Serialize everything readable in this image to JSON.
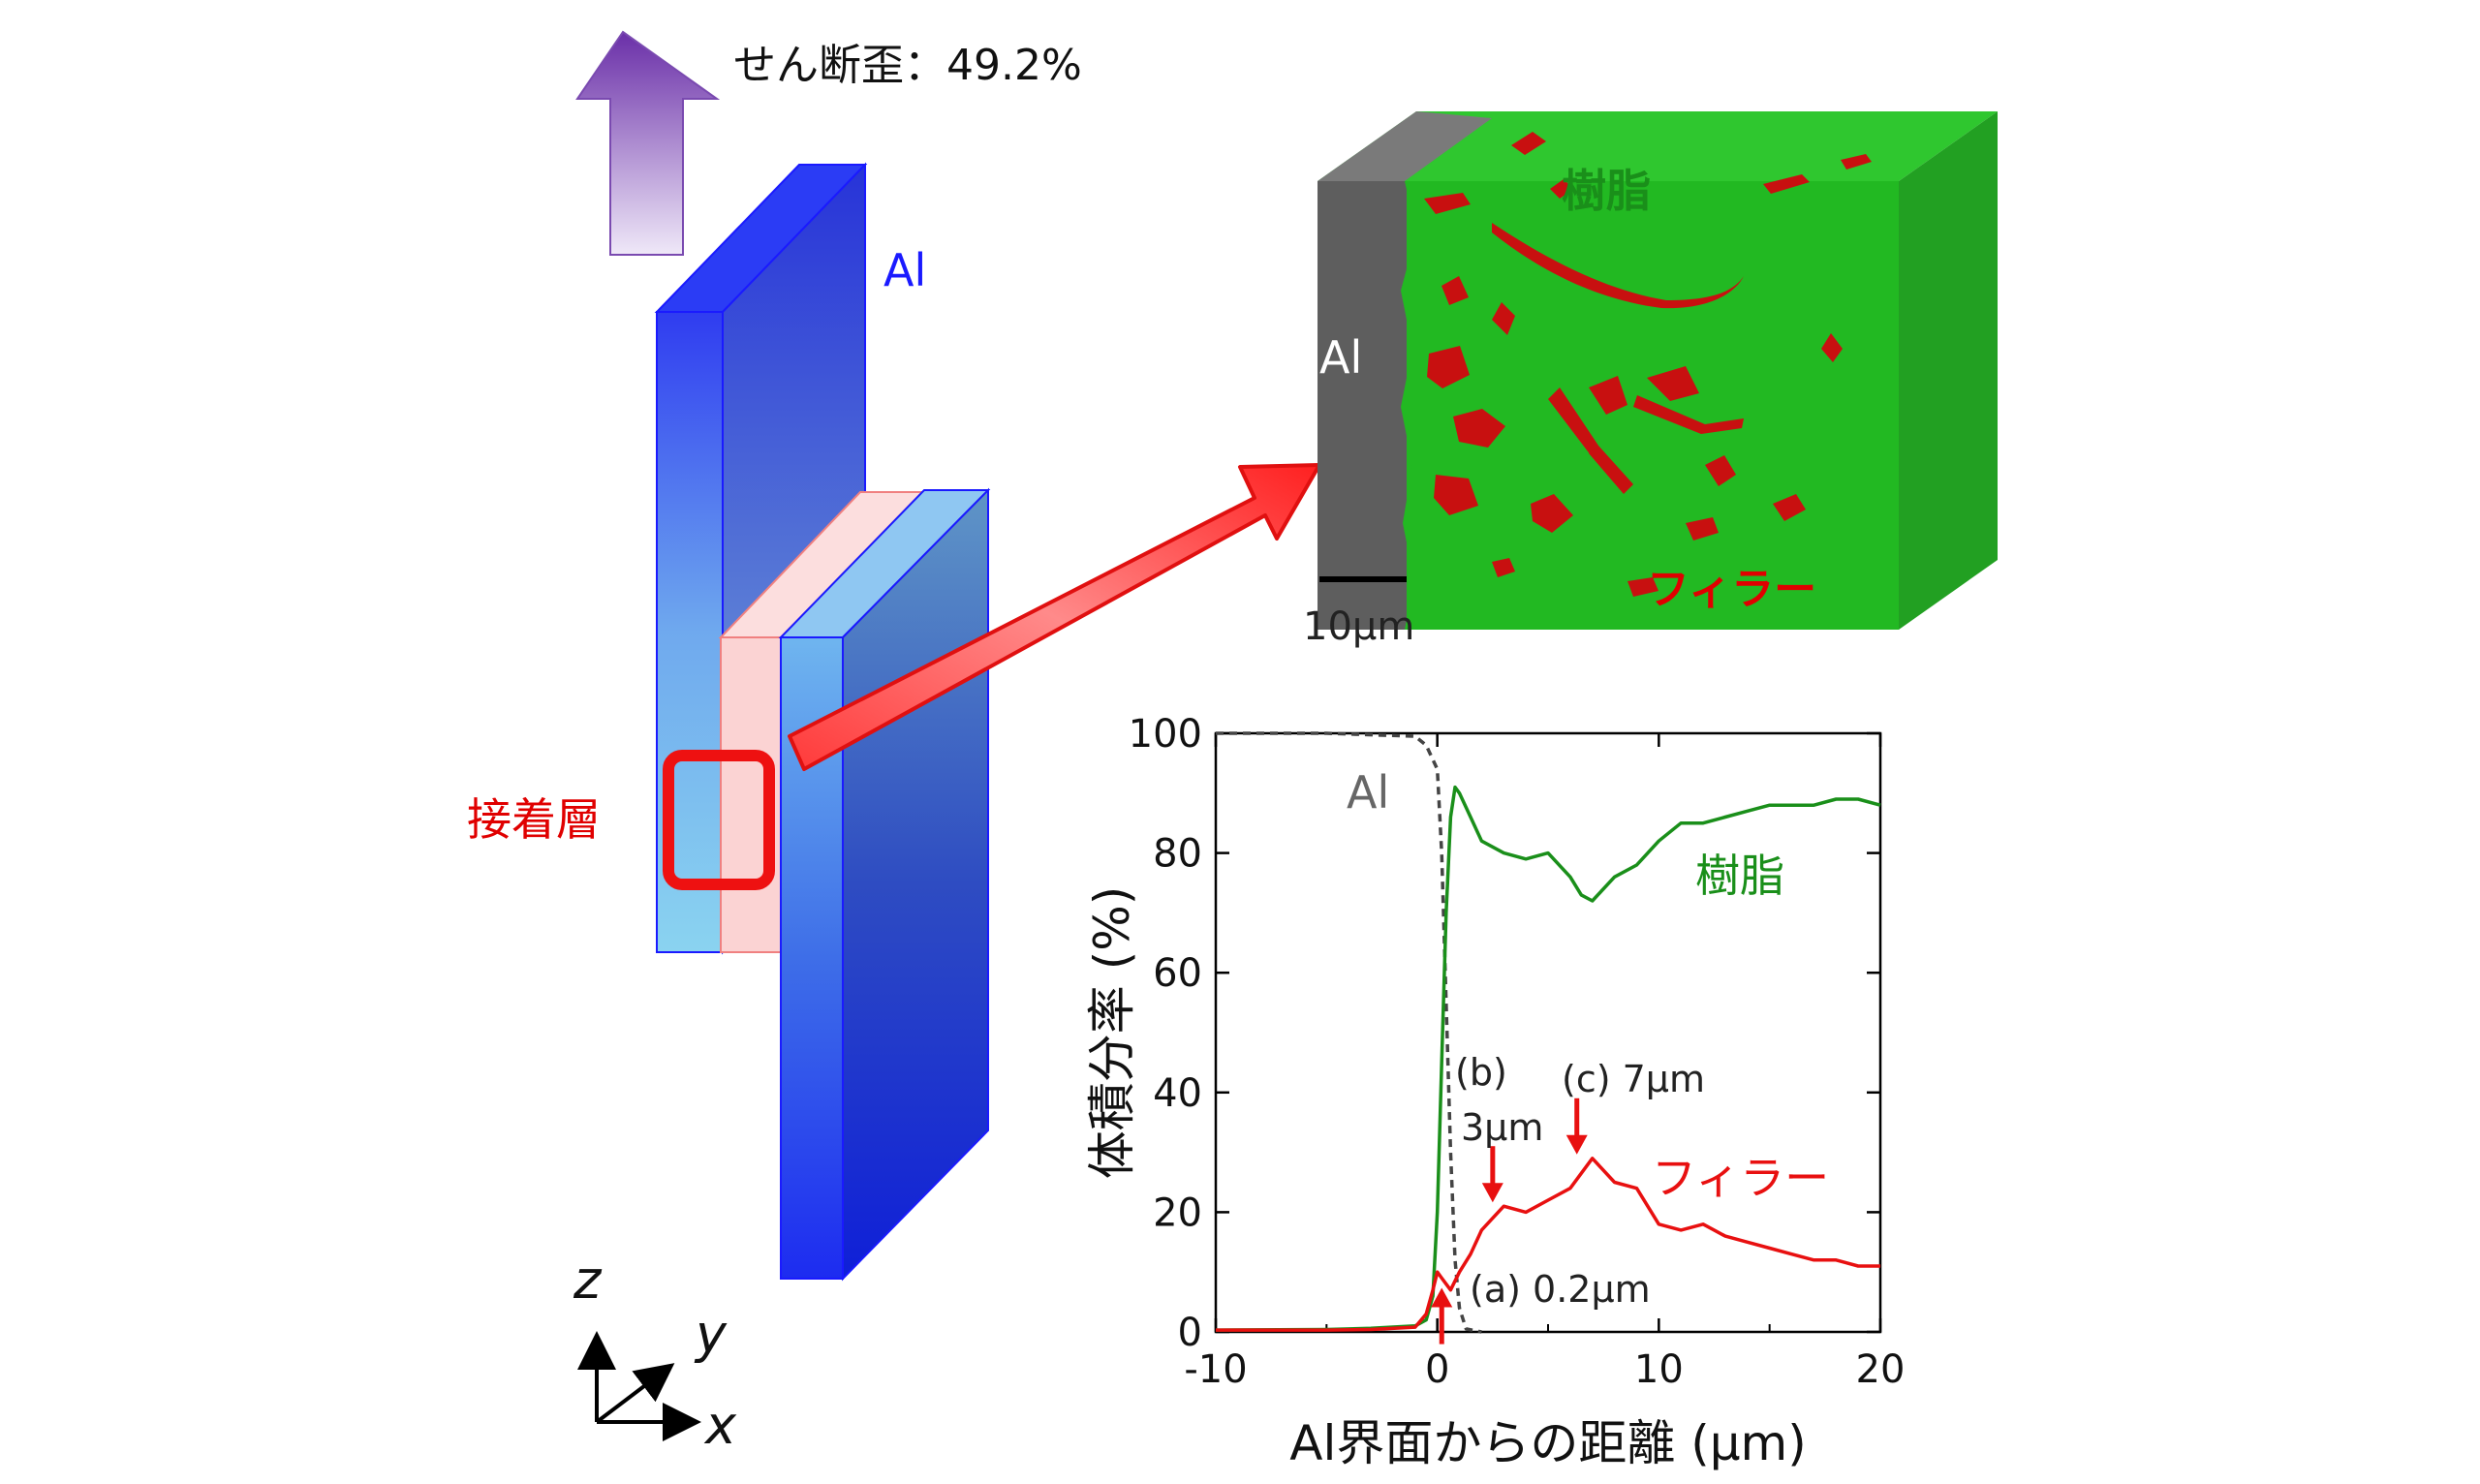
{
  "strain_label": "せん断歪：49.2%",
  "plate_label": "Al",
  "adhesive_label": "接着層",
  "axes_labels": {
    "z": "z",
    "y": "y",
    "x": "x"
  },
  "ct_image": {
    "resin_label": "樹脂",
    "al_label": "Al",
    "filler_label": "フィラー",
    "scale_bar_label": "10μm"
  },
  "colors": {
    "al_blue": "#1a1aff",
    "resin_green": "#1aa51a",
    "filler_red": "#e00000",
    "arrow_purple": "#7a4ab0"
  },
  "chart_data": {
    "type": "line",
    "xlabel": "Al界面からの距離 (μm)",
    "ylabel": "体積分率 (%)",
    "xlim": [
      -10,
      20
    ],
    "ylim": [
      0,
      100
    ],
    "xticks": [
      "-10",
      "0",
      "10",
      "20"
    ],
    "yticks": [
      "0",
      "20",
      "40",
      "60",
      "80",
      "100"
    ],
    "series": [
      {
        "name": "Al",
        "style": "dashed",
        "color": "#444444",
        "x": [
          -10,
          -5,
          -1,
          -0.5,
          0,
          0.2,
          0.4,
          0.6,
          0.8,
          1.0,
          1.3,
          2
        ],
        "y": [
          100,
          100,
          99.5,
          98,
          94,
          80,
          55,
          30,
          12,
          4,
          0.5,
          0
        ]
      },
      {
        "name": "樹脂",
        "color": "#1a8f1a",
        "x": [
          -10,
          -5,
          -3,
          -1,
          -0.5,
          -0.2,
          0,
          0.2,
          0.4,
          0.6,
          0.8,
          1,
          1.5,
          2,
          3,
          4,
          5,
          6,
          6.5,
          7,
          8,
          9,
          10,
          11,
          12,
          13,
          14,
          15,
          16,
          17,
          18,
          19,
          20
        ],
        "y": [
          0.3,
          0.4,
          0.6,
          1,
          2,
          6,
          20,
          45,
          70,
          86,
          91,
          90,
          86,
          82,
          80,
          79,
          80,
          76,
          73,
          72,
          76,
          78,
          82,
          85,
          85,
          86,
          87,
          88,
          88,
          88,
          89,
          89,
          88
        ]
      },
      {
        "name": "フィラー",
        "color": "#e81010",
        "x": [
          -10,
          -5,
          -3,
          -1,
          -0.5,
          -0.2,
          0,
          0.2,
          0.4,
          0.6,
          1,
          1.5,
          2,
          2.5,
          3,
          4,
          5,
          6,
          7,
          8,
          9,
          10,
          11,
          12,
          13,
          14,
          15,
          16,
          17,
          18,
          19,
          20
        ],
        "y": [
          0.3,
          0.3,
          0.4,
          0.8,
          3,
          7,
          10,
          9,
          8,
          7,
          10,
          13,
          17,
          19,
          21,
          20,
          22,
          24,
          29,
          25,
          24,
          18,
          17,
          18,
          16,
          15,
          14,
          13,
          12,
          12,
          11,
          11
        ]
      }
    ],
    "series_labels": [
      "Al",
      "樹脂",
      "フィラー"
    ],
    "annotations": [
      {
        "text": "(a) 0.2μm",
        "x": 0.2,
        "y": 8
      },
      {
        "text": "(b)",
        "x": 2.5,
        "y": 21
      },
      {
        "text": "3μm",
        "x": 2.5,
        "y": 21
      },
      {
        "text": "(c) 7μm",
        "x": 6.3,
        "y": 29
      }
    ]
  }
}
